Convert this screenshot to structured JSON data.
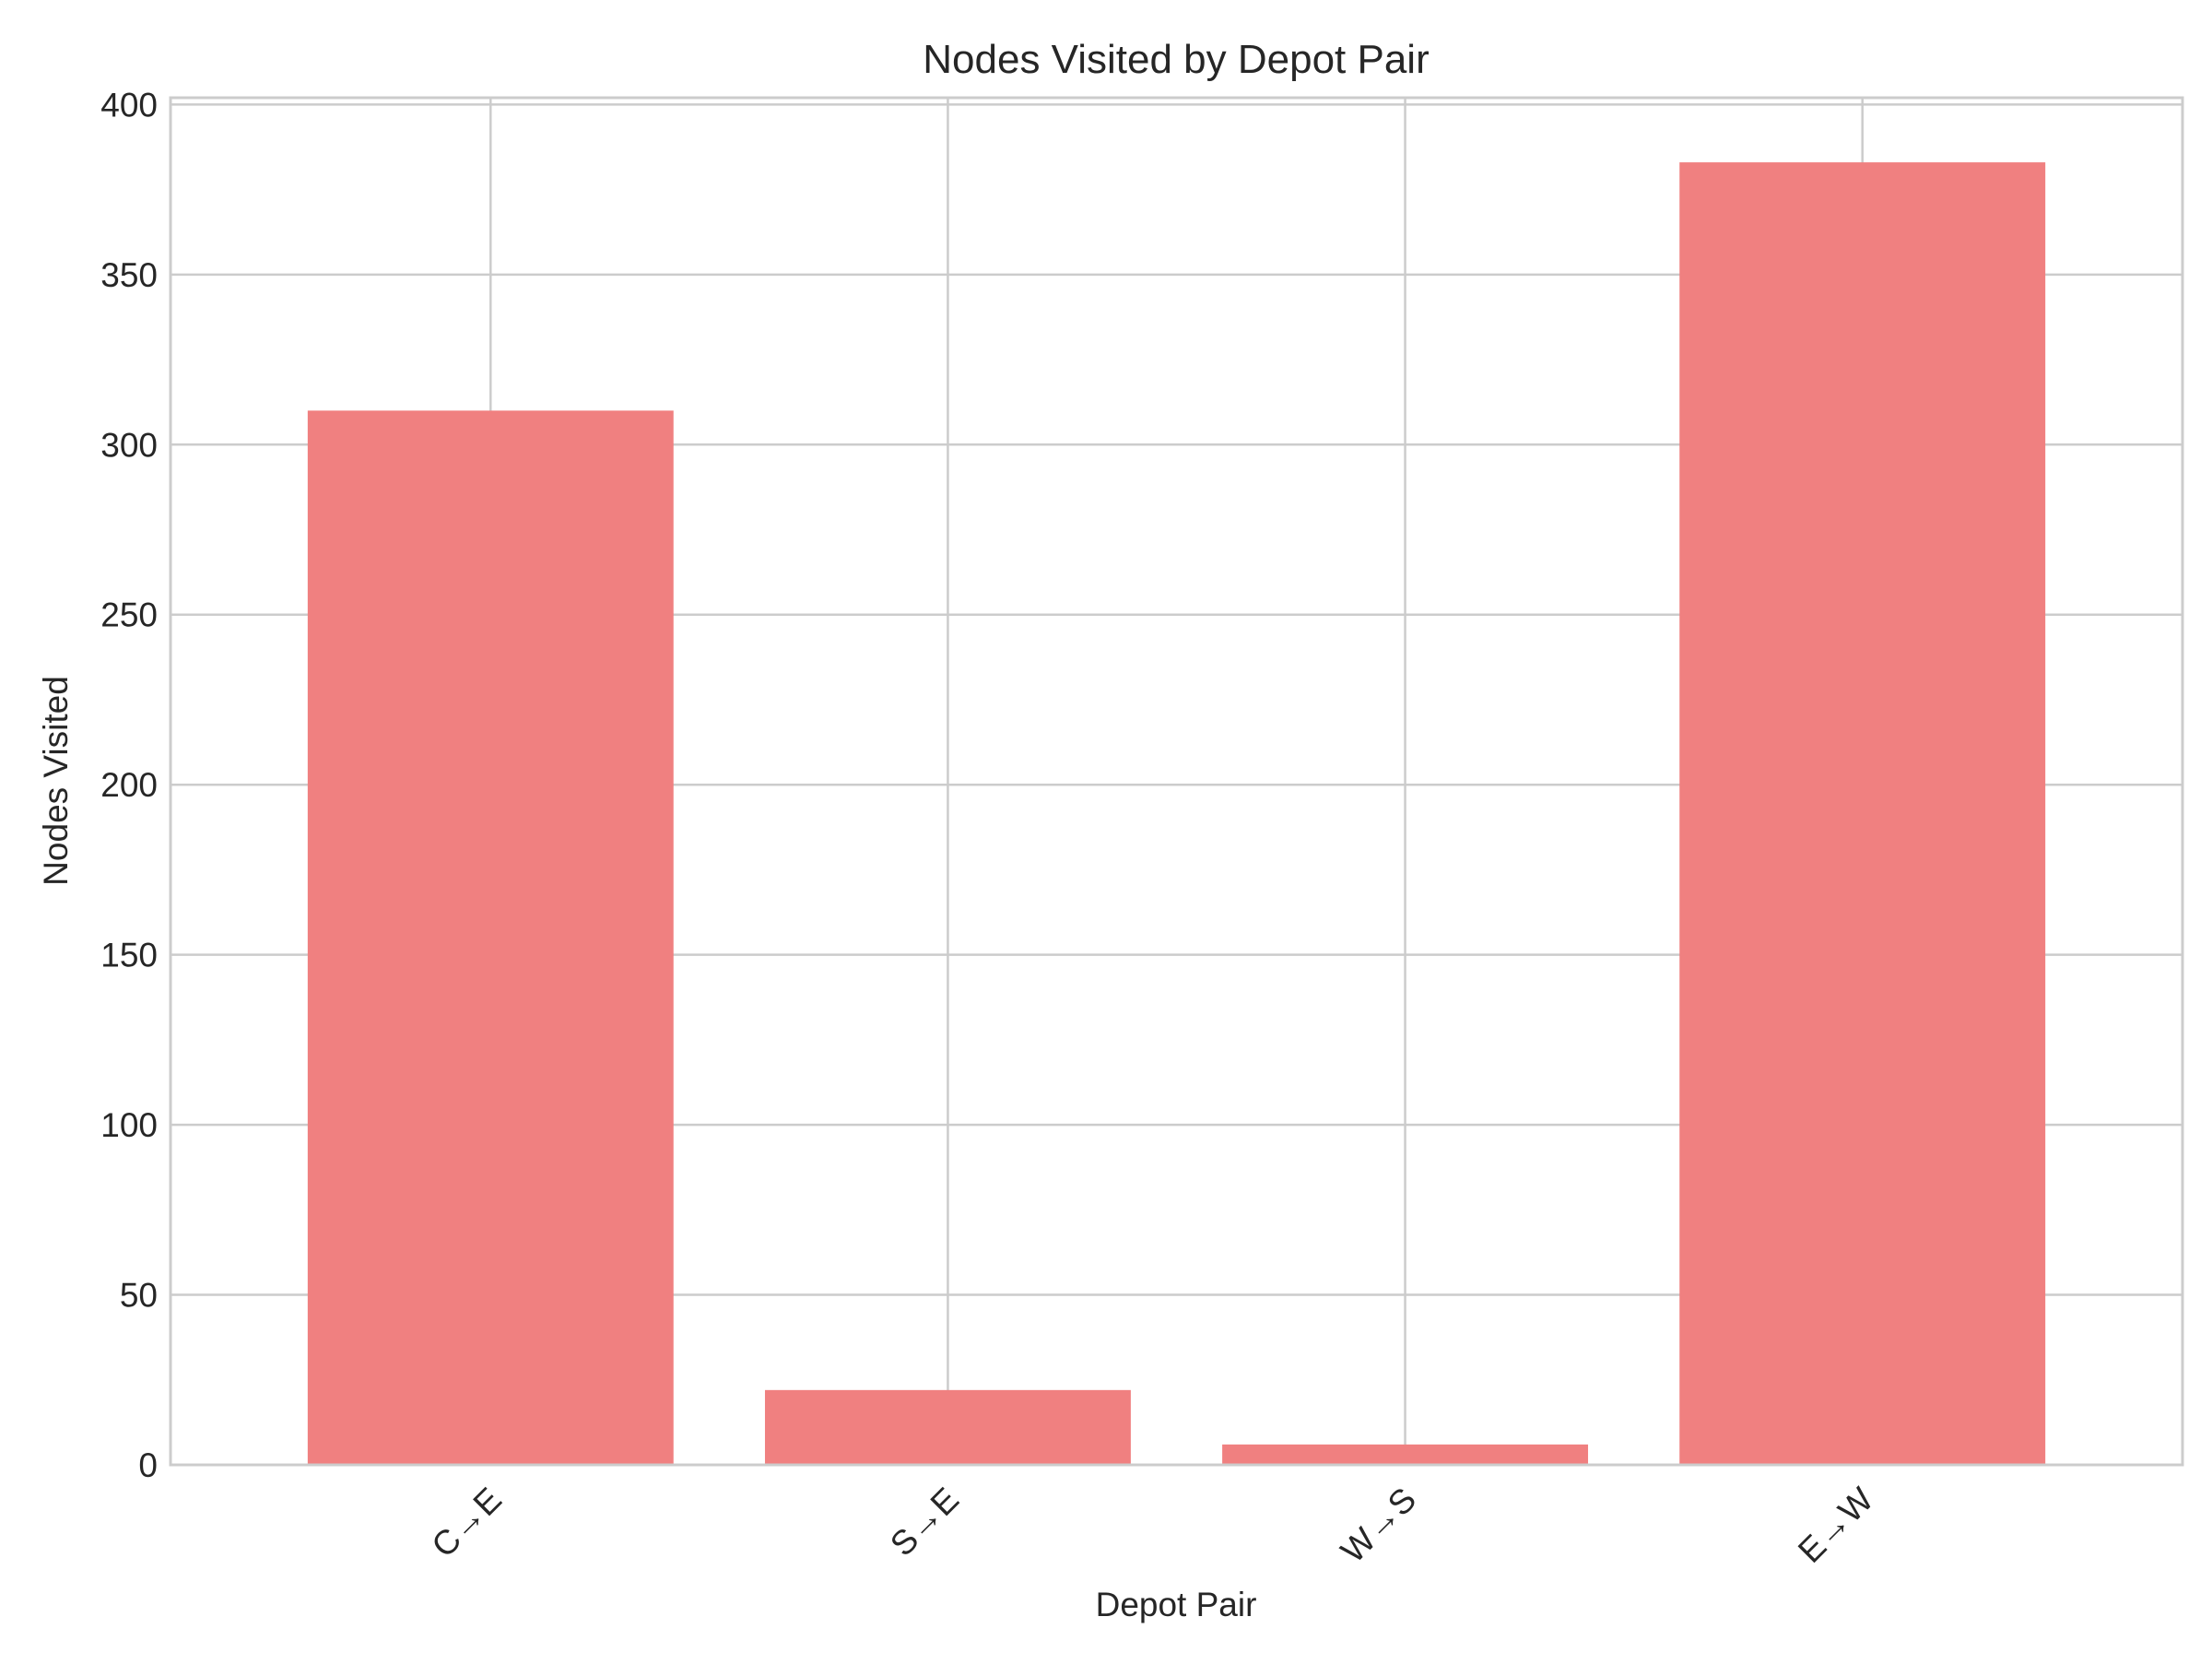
{
  "chart_data": {
    "type": "bar",
    "title": "Nodes Visited by Depot Pair",
    "xlabel": "Depot Pair",
    "ylabel": "Nodes Visited",
    "categories": [
      "C→E",
      "S→E",
      "W→S",
      "E→W"
    ],
    "values": [
      310,
      22,
      6,
      383
    ],
    "ylim": [
      0,
      402
    ],
    "yticks": [
      0,
      50,
      100,
      150,
      200,
      250,
      300,
      350,
      400
    ],
    "grid": true,
    "legend": "none",
    "bar_color": "#f08080",
    "grid_color": "#cccccc"
  }
}
